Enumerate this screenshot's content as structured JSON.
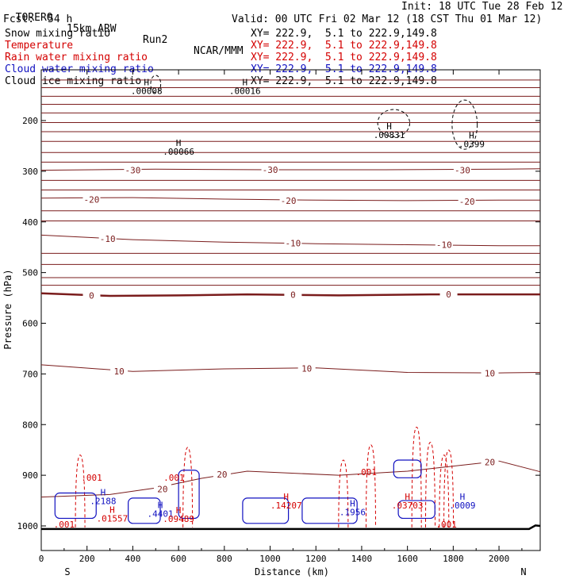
{
  "header": {
    "model": "TORERO",
    "resolution": "15km ARW",
    "run": "Run2",
    "org": "NCAR/MMM",
    "init": "Init: 18 UTC Tue 28 Feb 12",
    "fcst_label": "Fcst:",
    "fcst_value": "54 h",
    "valid": "Valid: 00 UTC Fri 02 Mar 12 (18 CST Thu 01 Mar 12)"
  },
  "legend": [
    {
      "label": "Snow mixing ratio",
      "color": "#000000",
      "xy": "XY= 222.9,  5.1 to 222.9,149.8"
    },
    {
      "label": "Temperature",
      "color": "#d40000",
      "xy": "XY= 222.9,  5.1 to 222.9,149.8"
    },
    {
      "label": "Rain water mixing ratio",
      "color": "#d40000",
      "xy": "XY= 222.9,  5.1 to 222.9,149.8"
    },
    {
      "label": "Cloud water mixing ratio",
      "color": "#1010c0",
      "xy": "XY= 222.9,  5.1 to 222.9,149.8"
    },
    {
      "label": "Cloud ice mixing ratio",
      "color": "#000000",
      "xy": "XY= 222.9,  5.1 to 222.9,149.8"
    }
  ],
  "chart_data": {
    "type": "contour-cross-section",
    "xlabel": "Distance (km)",
    "ylabel": "Pressure (hPa)",
    "x_ticks": [
      0,
      200,
      400,
      600,
      800,
      1000,
      1200,
      1400,
      1600,
      1800,
      2000
    ],
    "y_ticks": [
      200,
      300,
      400,
      500,
      600,
      700,
      800,
      900,
      1000
    ],
    "xlim": [
      0,
      2180
    ],
    "ylim": [
      1050,
      100
    ],
    "x_end_labels": {
      "left": "S",
      "right": "N"
    },
    "temperature_contours": [
      {
        "label": "-30",
        "points": [
          [
            0,
            298
          ],
          [
            500,
            296
          ],
          [
            1000,
            297
          ],
          [
            1500,
            297
          ],
          [
            2000,
            296
          ],
          [
            2180,
            295
          ]
        ],
        "label_positions": [
          [
            400,
            298
          ],
          [
            1000,
            297
          ],
          [
            1840,
            298
          ]
        ]
      },
      {
        "label": "-20",
        "points": [
          [
            0,
            353
          ],
          [
            400,
            352
          ],
          [
            800,
            355
          ],
          [
            1200,
            357
          ],
          [
            1600,
            358
          ],
          [
            2000,
            357
          ],
          [
            2180,
            357
          ]
        ],
        "label_positions": [
          [
            220,
            356
          ],
          [
            1080,
            358
          ],
          [
            1860,
            360
          ]
        ]
      },
      {
        "label": "-10",
        "points": [
          [
            0,
            426
          ],
          [
            400,
            435
          ],
          [
            800,
            440
          ],
          [
            1200,
            443
          ],
          [
            1600,
            445
          ],
          [
            2000,
            447
          ],
          [
            2180,
            447
          ]
        ],
        "label_positions": [
          [
            290,
            433
          ],
          [
            1100,
            442
          ],
          [
            1760,
            445
          ]
        ]
      },
      {
        "label": "0",
        "points": [
          [
            0,
            541
          ],
          [
            300,
            546
          ],
          [
            600,
            545
          ],
          [
            900,
            543
          ],
          [
            1300,
            545
          ],
          [
            1700,
            543
          ],
          [
            2000,
            543
          ],
          [
            2180,
            543
          ]
        ],
        "label_positions": [
          [
            220,
            545
          ],
          [
            1100,
            544
          ],
          [
            1780,
            543
          ]
        ]
      },
      {
        "label": "10",
        "points": [
          [
            0,
            682
          ],
          [
            400,
            695
          ],
          [
            800,
            690
          ],
          [
            1200,
            688
          ],
          [
            1600,
            697
          ],
          [
            2000,
            698
          ],
          [
            2180,
            697
          ]
        ],
        "label_positions": [
          [
            340,
            695
          ],
          [
            1160,
            689
          ],
          [
            1960,
            699
          ]
        ]
      },
      {
        "label": "20",
        "points": [
          [
            0,
            943
          ],
          [
            300,
            938
          ],
          [
            500,
            925
          ],
          [
            700,
            906
          ],
          [
            900,
            892
          ],
          [
            1300,
            900
          ],
          [
            1600,
            892
          ],
          [
            2000,
            872
          ],
          [
            2180,
            893
          ]
        ],
        "label_positions": [
          [
            530,
            927
          ],
          [
            790,
            898
          ],
          [
            1960,
            874
          ]
        ]
      }
    ],
    "tropopause_lines_hpa": [
      120,
      135,
      152,
      168,
      185,
      204,
      222,
      241,
      263,
      282,
      318,
      337,
      378,
      398,
      462,
      484,
      510,
      525
    ],
    "annotations": [
      {
        "text": "H",
        "value": ".00008",
        "x": 460,
        "y": 130,
        "color": "#000000"
      },
      {
        "text": "H",
        "value": ".00016",
        "x": 890,
        "y": 130,
        "color": "#000000"
      },
      {
        "text": "H",
        "value": ".00066",
        "x": 600,
        "y": 250,
        "color": "#000000"
      },
      {
        "text": "H",
        "value": ".00831",
        "x": 1520,
        "y": 217,
        "color": "#000000"
      },
      {
        "text": "H",
        "value": ".0399",
        "x": 1880,
        "y": 235,
        "color": "#000000"
      },
      {
        "text": "H",
        "value": ".2188",
        "x": 270,
        "y": 940,
        "color": "#1010c0"
      },
      {
        "text": "H",
        "value": ".01557",
        "x": 310,
        "y": 974,
        "color": "#d40000"
      },
      {
        "text": "H",
        "value": ".4401",
        "x": 520,
        "y": 965,
        "color": "#1010c0"
      },
      {
        "text": "H",
        "value": ".09489",
        "x": 600,
        "y": 975,
        "color": "#d40000"
      },
      {
        "text": "H",
        "value": ".14207",
        "x": 1070,
        "y": 948,
        "color": "#d40000"
      },
      {
        "text": "H",
        "value": ".1956",
        "x": 1360,
        "y": 962,
        "color": "#1010c0"
      },
      {
        "text": "H",
        "value": ".03703",
        "x": 1600,
        "y": 948,
        "color": "#d40000"
      },
      {
        "text": "H",
        "value": ".0009",
        "x": 1840,
        "y": 948,
        "color": "#1010c0"
      }
    ],
    "small_labels": [
      {
        "text": ".001",
        "x": 220,
        "y": 911,
        "color": "#d40000"
      },
      {
        "text": ".001",
        "x": 580,
        "y": 911,
        "color": "#d40000"
      },
      {
        "text": ".001",
        "x": 1420,
        "y": 900,
        "color": "#d40000"
      },
      {
        "text": ".001",
        "x": 1770,
        "y": 1003,
        "color": "#d40000"
      },
      {
        "text": ".001",
        "x": 100,
        "y": 1003,
        "color": "#d40000"
      }
    ]
  }
}
